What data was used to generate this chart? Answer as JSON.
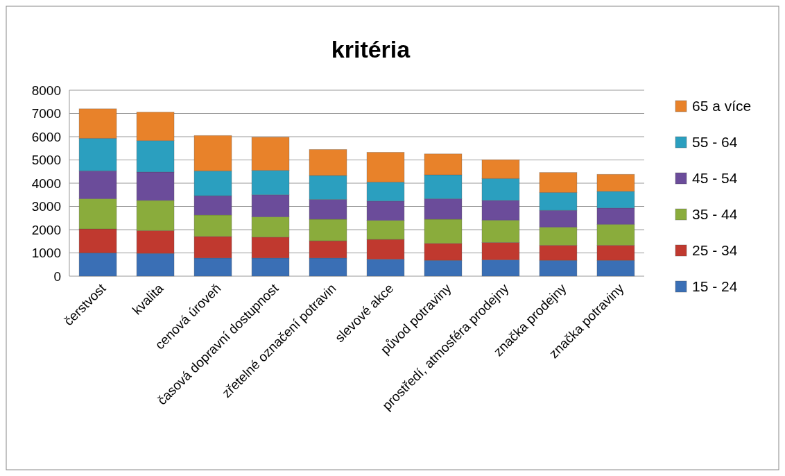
{
  "chart_data": {
    "type": "bar",
    "title": "kritéria",
    "stacked": true,
    "categories": [
      "čerstvost",
      "kvalita",
      "cenová úroveň",
      "časová dopravní dostupnost",
      "zřetelné označení potravin",
      "slevové akce",
      "původ potraviny",
      "prostředí, atmosféra prodejny",
      "značka prodejny",
      "značka potraviny"
    ],
    "series": [
      {
        "name": "15 - 24",
        "color": "#3a6fb5",
        "values": [
          1000,
          980,
          780,
          780,
          780,
          730,
          680,
          700,
          680,
          680
        ]
      },
      {
        "name": "25 - 34",
        "color": "#c0392f",
        "values": [
          1030,
          980,
          930,
          900,
          740,
          850,
          730,
          750,
          650,
          650
        ]
      },
      {
        "name": "35 - 44",
        "color": "#8aac3c",
        "values": [
          1300,
          1300,
          920,
          870,
          930,
          820,
          1040,
          960,
          780,
          900
        ]
      },
      {
        "name": "45 - 54",
        "color": "#6b4c9a",
        "values": [
          1200,
          1220,
          830,
          950,
          850,
          830,
          880,
          850,
          720,
          700
        ]
      },
      {
        "name": "55 - 64",
        "color": "#2b9fbf",
        "values": [
          1400,
          1350,
          1070,
          1050,
          1030,
          820,
          1030,
          940,
          770,
          720
        ]
      },
      {
        "name": "65 a více",
        "color": "#e8822a",
        "values": [
          1270,
          1230,
          1520,
          1430,
          1120,
          1280,
          900,
          810,
          860,
          730
        ]
      }
    ],
    "ylim": [
      0,
      8000
    ],
    "yticks": [
      0,
      1000,
      2000,
      3000,
      4000,
      5000,
      6000,
      7000,
      8000
    ],
    "grid": "y",
    "legend": "right"
  }
}
